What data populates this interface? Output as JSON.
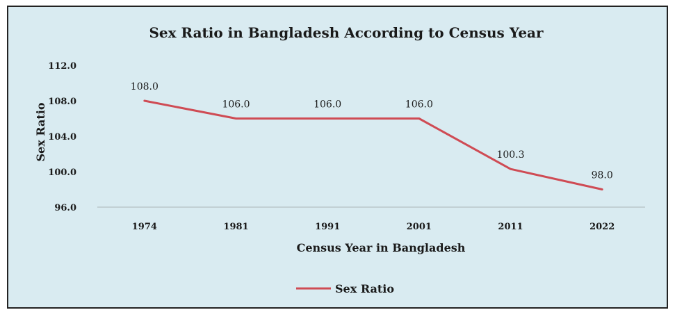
{
  "chart_data": {
    "type": "line",
    "title": "Sex Ratio in Bangladesh According to Census Year",
    "xlabel": "Census Year in Bangladesh",
    "ylabel": "Sex Ratio",
    "categories": [
      "1974",
      "1981",
      "1991",
      "2001",
      "2011",
      "2022"
    ],
    "series": [
      {
        "name": "Sex Ratio",
        "values": [
          108.0,
          106.0,
          106.0,
          106.0,
          100.3,
          98.0
        ],
        "labels": [
          "108.0",
          "106.0",
          "106.0",
          "106.0",
          "100.3",
          "98.0"
        ],
        "color": "#cf4b54"
      }
    ],
    "yticks": [
      "96.0",
      "100.0",
      "104.0",
      "108.0",
      "112.0"
    ],
    "ylim": [
      96,
      112
    ],
    "grid": false,
    "legend": "bottom"
  },
  "colors": {
    "background": "#d9ebf1",
    "line": "#cf4b54",
    "axis": "#aab4b8"
  }
}
